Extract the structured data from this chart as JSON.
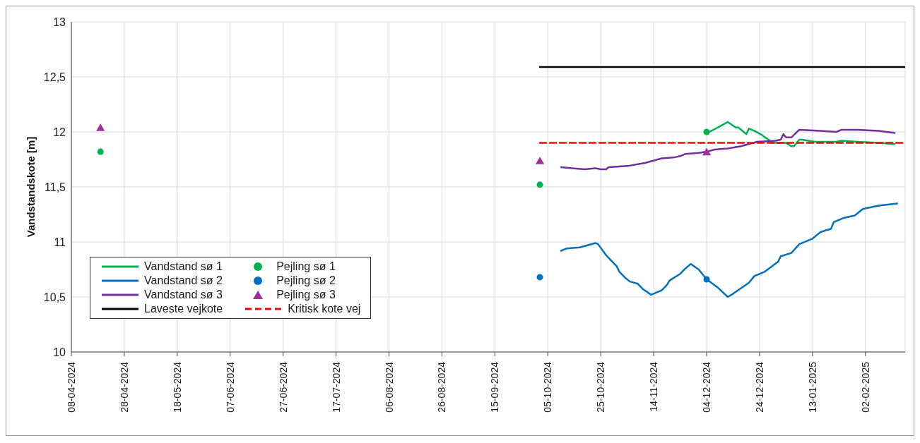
{
  "chart_data": {
    "type": "line",
    "ylabel": "Vandstandskote [m]",
    "xlim": [
      "2024-04-08",
      "2025-02-17"
    ],
    "xticks": [
      {
        "value": "2024-04-08",
        "label": "08-04-2024"
      },
      {
        "value": "2024-04-28",
        "label": "28-04-2024"
      },
      {
        "value": "2024-05-18",
        "label": "18-05-2024"
      },
      {
        "value": "2024-06-07",
        "label": "07-06-2024"
      },
      {
        "value": "2024-06-27",
        "label": "27-06-2024"
      },
      {
        "value": "2024-07-17",
        "label": "17-07-2024"
      },
      {
        "value": "2024-08-06",
        "label": "06-08-2024"
      },
      {
        "value": "2024-08-26",
        "label": "26-08-2024"
      },
      {
        "value": "2024-09-15",
        "label": "15-09-2024"
      },
      {
        "value": "2024-10-05",
        "label": "05-10-2024"
      },
      {
        "value": "2024-10-25",
        "label": "25-10-2024"
      },
      {
        "value": "2024-11-14",
        "label": "14-11-2024"
      },
      {
        "value": "2024-12-04",
        "label": "04-12-2024"
      },
      {
        "value": "2024-12-24",
        "label": "24-12-2024"
      },
      {
        "value": "2025-01-13",
        "label": "13-01-2025"
      },
      {
        "value": "2025-02-02",
        "label": "02-02-2025"
      }
    ],
    "ylim": [
      10,
      13
    ],
    "yticks": [
      10,
      {
        "value": 10.5,
        "label": "10,5"
      },
      11,
      {
        "value": 11.5,
        "label": "11,5"
      },
      12,
      {
        "value": 12.5,
        "label": "12,5"
      },
      13
    ],
    "grid": true,
    "legend": "bottom left",
    "series": [
      {
        "name": "Vandstand sø 1",
        "color": "#00b050",
        "marker": "none",
        "line_style": "solid",
        "x": [
          "2024-12-05",
          "2024-12-09",
          "2024-12-12",
          "2024-12-15",
          "2024-12-16",
          "2024-12-18",
          "2024-12-19",
          "2024-12-20",
          "2024-12-22",
          "2024-12-25",
          "2024-12-29",
          "2024-12-31",
          "2025-01-03",
          "2025-01-05",
          "2025-01-06",
          "2025-01-08",
          "2025-01-09",
          "2025-01-14",
          "2025-01-22",
          "2025-01-24",
          "2025-01-30",
          "2025-02-07",
          "2025-02-13"
        ],
        "values": [
          12.0,
          12.05,
          12.09,
          12.04,
          12.04,
          12.0,
          11.98,
          12.03,
          12.01,
          11.97,
          11.9,
          11.9,
          11.9,
          11.87,
          11.87,
          11.93,
          11.93,
          11.91,
          11.91,
          11.92,
          11.91,
          11.9,
          11.89
        ]
      },
      {
        "name": "Pejling sø 1",
        "type": "scatter",
        "color": "#00b050",
        "marker": "circle",
        "x": [
          "2024-04-19",
          "2024-10-02",
          "2024-12-04"
        ],
        "values": [
          11.82,
          11.52,
          12.0
        ]
      },
      {
        "name": "Vandstand sø 2",
        "color": "#0070c0",
        "marker": "none",
        "line_style": "solid",
        "x": [
          "2024-10-10",
          "2024-10-12",
          "2024-10-17",
          "2024-10-20",
          "2024-10-23",
          "2024-10-24",
          "2024-10-27",
          "2024-10-29",
          "2024-10-31",
          "2024-11-01",
          "2024-11-03",
          "2024-11-05",
          "2024-11-08",
          "2024-11-10",
          "2024-11-13",
          "2024-11-17",
          "2024-11-19",
          "2024-11-20",
          "2024-11-24",
          "2024-11-26",
          "2024-11-28",
          "2024-12-01",
          "2024-12-04",
          "2024-12-08",
          "2024-12-12",
          "2024-12-14",
          "2024-12-17",
          "2024-12-20",
          "2024-12-22",
          "2024-12-26",
          "2024-12-31",
          "2025-01-01",
          "2025-01-05",
          "2025-01-08",
          "2025-01-13",
          "2025-01-16",
          "2025-01-20",
          "2025-01-21",
          "2025-01-25",
          "2025-01-29",
          "2025-02-01",
          "2025-02-07",
          "2025-02-14"
        ],
        "values": [
          10.92,
          10.94,
          10.95,
          10.97,
          10.99,
          10.98,
          10.88,
          10.83,
          10.78,
          10.73,
          10.68,
          10.64,
          10.62,
          10.57,
          10.52,
          10.56,
          10.61,
          10.65,
          10.71,
          10.76,
          10.8,
          10.75,
          10.66,
          10.59,
          10.5,
          10.53,
          10.58,
          10.63,
          10.69,
          10.73,
          10.82,
          10.87,
          10.9,
          10.98,
          11.03,
          11.09,
          11.12,
          11.18,
          11.22,
          11.24,
          11.3,
          11.33,
          11.35
        ]
      },
      {
        "name": "Pejling sø 2",
        "type": "scatter",
        "color": "#0070c0",
        "marker": "circle",
        "x": [
          "2024-10-02",
          "2024-12-04"
        ],
        "values": [
          10.68,
          10.66
        ]
      },
      {
        "name": "Vandstand sø 3",
        "color": "#7030a0",
        "marker": "none",
        "line_style": "solid",
        "x": [
          "2024-10-10",
          "2024-10-14",
          "2024-10-19",
          "2024-10-23",
          "2024-10-25",
          "2024-10-27",
          "2024-10-28",
          "2024-11-04",
          "2024-11-11",
          "2024-11-17",
          "2024-11-22",
          "2024-11-24",
          "2024-11-26",
          "2024-12-01",
          "2024-12-04",
          "2024-12-07",
          "2024-12-12",
          "2024-12-17",
          "2024-12-23",
          "2024-12-30",
          "2025-01-01",
          "2025-01-02",
          "2025-01-03",
          "2025-01-05",
          "2025-01-08",
          "2025-01-16",
          "2025-01-22",
          "2025-01-24",
          "2025-01-30",
          "2025-02-07",
          "2025-02-13"
        ],
        "values": [
          11.68,
          11.67,
          11.66,
          11.67,
          11.66,
          11.66,
          11.68,
          11.69,
          11.72,
          11.76,
          11.77,
          11.78,
          11.8,
          11.81,
          11.82,
          11.84,
          11.85,
          11.87,
          11.91,
          11.92,
          11.93,
          11.98,
          11.95,
          11.95,
          12.02,
          12.01,
          12.0,
          12.02,
          12.02,
          12.01,
          11.99
        ]
      },
      {
        "name": "Pejling sø 3",
        "type": "scatter",
        "color": "#a0309a",
        "marker": "triangle",
        "x": [
          "2024-04-19",
          "2024-10-02",
          "2024-12-04"
        ],
        "values": [
          12.03,
          11.73,
          11.81
        ]
      },
      {
        "name": "Laveste vejkote",
        "color": "#000000",
        "marker": "none",
        "line_style": "solid",
        "x": [
          "2024-10-02",
          "2025-02-17"
        ],
        "values": [
          12.59,
          12.59
        ]
      },
      {
        "name": "Kritisk kote vej",
        "color": "#ff0000",
        "marker": "none",
        "line_style": "dashed",
        "x": [
          "2024-10-02",
          "2025-02-17"
        ],
        "values": [
          11.9,
          11.9
        ]
      }
    ]
  }
}
